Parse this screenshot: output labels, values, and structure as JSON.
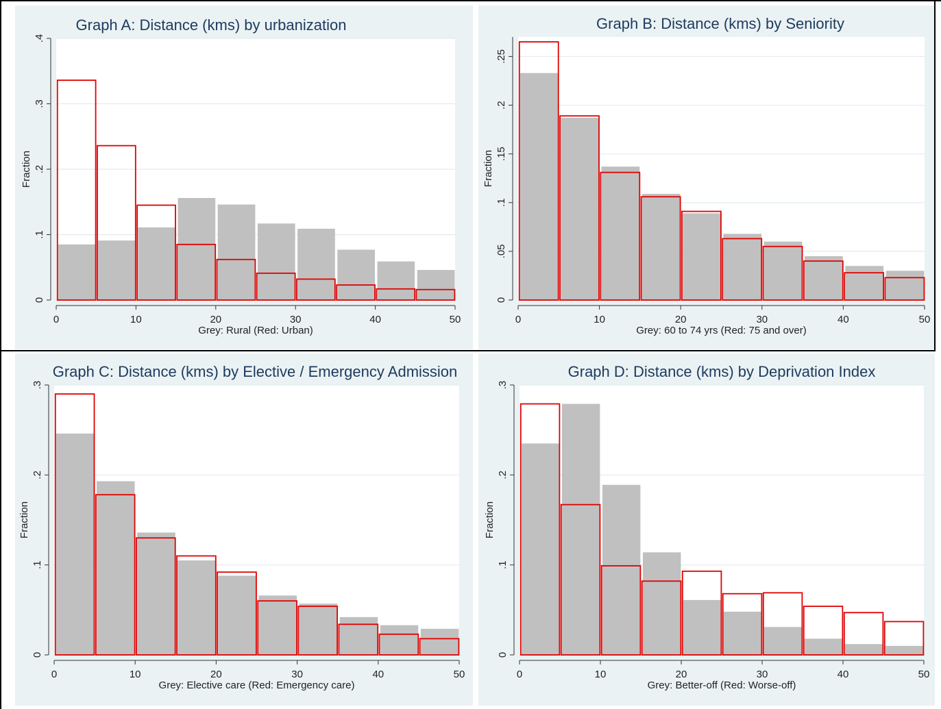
{
  "chart_data": [
    {
      "type": "bar",
      "title": "Graph A: Distance (kms) by urbanization",
      "xlabel": "Grey: Rural (Red: Urban)",
      "ylabel": "Fraction",
      "xlim": [
        0,
        50
      ],
      "ylim": [
        0,
        0.4
      ],
      "bin_width": 5,
      "bin_starts": [
        0,
        5,
        10,
        15,
        20,
        25,
        30,
        35,
        40,
        45
      ],
      "x_ticks": [
        {
          "v": 0,
          "label": "0"
        },
        {
          "v": 10,
          "label": "10"
        },
        {
          "v": 20,
          "label": "20"
        },
        {
          "v": 30,
          "label": "30"
        },
        {
          "v": 40,
          "label": "40"
        },
        {
          "v": 50,
          "label": "50"
        }
      ],
      "y_ticks": [
        {
          "v": 0,
          "label": "0"
        },
        {
          "v": 0.1,
          "label": ".1"
        },
        {
          "v": 0.2,
          "label": ".2"
        },
        {
          "v": 0.3,
          "label": ".3"
        },
        {
          "v": 0.4,
          "label": ".4"
        }
      ],
      "grid": true,
      "series": [
        {
          "name": "Rural",
          "style": "grey filled",
          "color": "#c0c0c0",
          "values": [
            0.085,
            0.091,
            0.111,
            0.156,
            0.146,
            0.117,
            0.109,
            0.077,
            0.059,
            0.046
          ]
        },
        {
          "name": "Urban",
          "style": "red outline",
          "color": "#e00000",
          "values": [
            0.336,
            0.236,
            0.145,
            0.085,
            0.062,
            0.041,
            0.032,
            0.023,
            0.017,
            0.016
          ]
        }
      ]
    },
    {
      "type": "bar",
      "title": "Graph B: Distance (kms) by Seniority",
      "xlabel": "Grey: 60 to 74 yrs (Red: 75 and over)",
      "ylabel": "Fraction",
      "xlim": [
        0,
        50
      ],
      "ylim": [
        0,
        0.27
      ],
      "bin_width": 5,
      "bin_starts": [
        0,
        5,
        10,
        15,
        20,
        25,
        30,
        35,
        40,
        45
      ],
      "x_ticks": [
        {
          "v": 0,
          "label": "0"
        },
        {
          "v": 10,
          "label": "10"
        },
        {
          "v": 20,
          "label": "20"
        },
        {
          "v": 30,
          "label": "30"
        },
        {
          "v": 40,
          "label": "40"
        },
        {
          "v": 50,
          "label": "50"
        }
      ],
      "y_ticks": [
        {
          "v": 0,
          "label": "0"
        },
        {
          "v": 0.05,
          "label": ".05"
        },
        {
          "v": 0.1,
          "label": ".1"
        },
        {
          "v": 0.15,
          "label": ".15"
        },
        {
          "v": 0.2,
          "label": ".2"
        },
        {
          "v": 0.25,
          "label": ".25"
        }
      ],
      "grid": true,
      "series": [
        {
          "name": "60 to 74 yrs",
          "style": "grey filled",
          "color": "#c0c0c0",
          "values": [
            0.233,
            0.187,
            0.137,
            0.109,
            0.089,
            0.068,
            0.06,
            0.045,
            0.035,
            0.03
          ]
        },
        {
          "name": "75 and over",
          "style": "red outline",
          "color": "#e00000",
          "values": [
            0.265,
            0.189,
            0.131,
            0.106,
            0.091,
            0.063,
            0.055,
            0.04,
            0.028,
            0.023
          ]
        }
      ]
    },
    {
      "type": "bar",
      "title": "Graph C: Distance (kms) by Elective / Emergency Admission",
      "xlabel": "Grey: Elective care (Red: Emergency care)",
      "ylabel": "Fraction",
      "xlim": [
        0,
        50
      ],
      "ylim": [
        0,
        0.3
      ],
      "bin_width": 5,
      "bin_starts": [
        0,
        5,
        10,
        15,
        20,
        25,
        30,
        35,
        40,
        45
      ],
      "x_ticks": [
        {
          "v": 0,
          "label": "0"
        },
        {
          "v": 10,
          "label": "10"
        },
        {
          "v": 20,
          "label": "20"
        },
        {
          "v": 30,
          "label": "30"
        },
        {
          "v": 40,
          "label": "40"
        },
        {
          "v": 50,
          "label": "50"
        }
      ],
      "y_ticks": [
        {
          "v": 0,
          "label": "0"
        },
        {
          "v": 0.1,
          "label": ".1"
        },
        {
          "v": 0.2,
          "label": ".2"
        },
        {
          "v": 0.3,
          "label": ".3"
        }
      ],
      "grid": true,
      "series": [
        {
          "name": "Elective care",
          "style": "grey filled",
          "color": "#c0c0c0",
          "values": [
            0.246,
            0.193,
            0.136,
            0.105,
            0.088,
            0.066,
            0.057,
            0.042,
            0.033,
            0.029
          ]
        },
        {
          "name": "Emergency care",
          "style": "red outline",
          "color": "#e00000",
          "values": [
            0.29,
            0.178,
            0.13,
            0.11,
            0.092,
            0.06,
            0.054,
            0.034,
            0.023,
            0.018
          ]
        }
      ]
    },
    {
      "type": "bar",
      "title": "Graph D: Distance (kms) by Deprivation Index",
      "xlabel": "Grey: Better-off (Red: Worse-off)",
      "ylabel": "Fraction",
      "xlim": [
        0,
        50
      ],
      "ylim": [
        0,
        0.3
      ],
      "bin_width": 5,
      "bin_starts": [
        0,
        5,
        10,
        15,
        20,
        25,
        30,
        35,
        40,
        45
      ],
      "x_ticks": [
        {
          "v": 0,
          "label": "0"
        },
        {
          "v": 10,
          "label": "10"
        },
        {
          "v": 20,
          "label": "20"
        },
        {
          "v": 30,
          "label": "30"
        },
        {
          "v": 40,
          "label": "40"
        },
        {
          "v": 50,
          "label": "50"
        }
      ],
      "y_ticks": [
        {
          "v": 0,
          "label": "0"
        },
        {
          "v": 0.1,
          "label": ".1"
        },
        {
          "v": 0.2,
          "label": ".2"
        },
        {
          "v": 0.3,
          "label": ".3"
        }
      ],
      "grid": true,
      "series": [
        {
          "name": "Better-off",
          "style": "grey filled",
          "color": "#c0c0c0",
          "values": [
            0.235,
            0.279,
            0.189,
            0.114,
            0.061,
            0.048,
            0.031,
            0.018,
            0.012,
            0.01
          ]
        },
        {
          "name": "Worse-off",
          "style": "red outline",
          "color": "#e00000",
          "values": [
            0.279,
            0.167,
            0.099,
            0.082,
            0.093,
            0.068,
            0.069,
            0.054,
            0.047,
            0.037
          ]
        }
      ]
    }
  ],
  "colors": {
    "panel_bg": "#eaf2f3",
    "plot_bg": "#ffffff",
    "title": "#1e3a5f",
    "grey_bar": "#c0c0c0",
    "red_outline": "#e00000",
    "grid": "#e2ecee",
    "axis": "#333333"
  }
}
